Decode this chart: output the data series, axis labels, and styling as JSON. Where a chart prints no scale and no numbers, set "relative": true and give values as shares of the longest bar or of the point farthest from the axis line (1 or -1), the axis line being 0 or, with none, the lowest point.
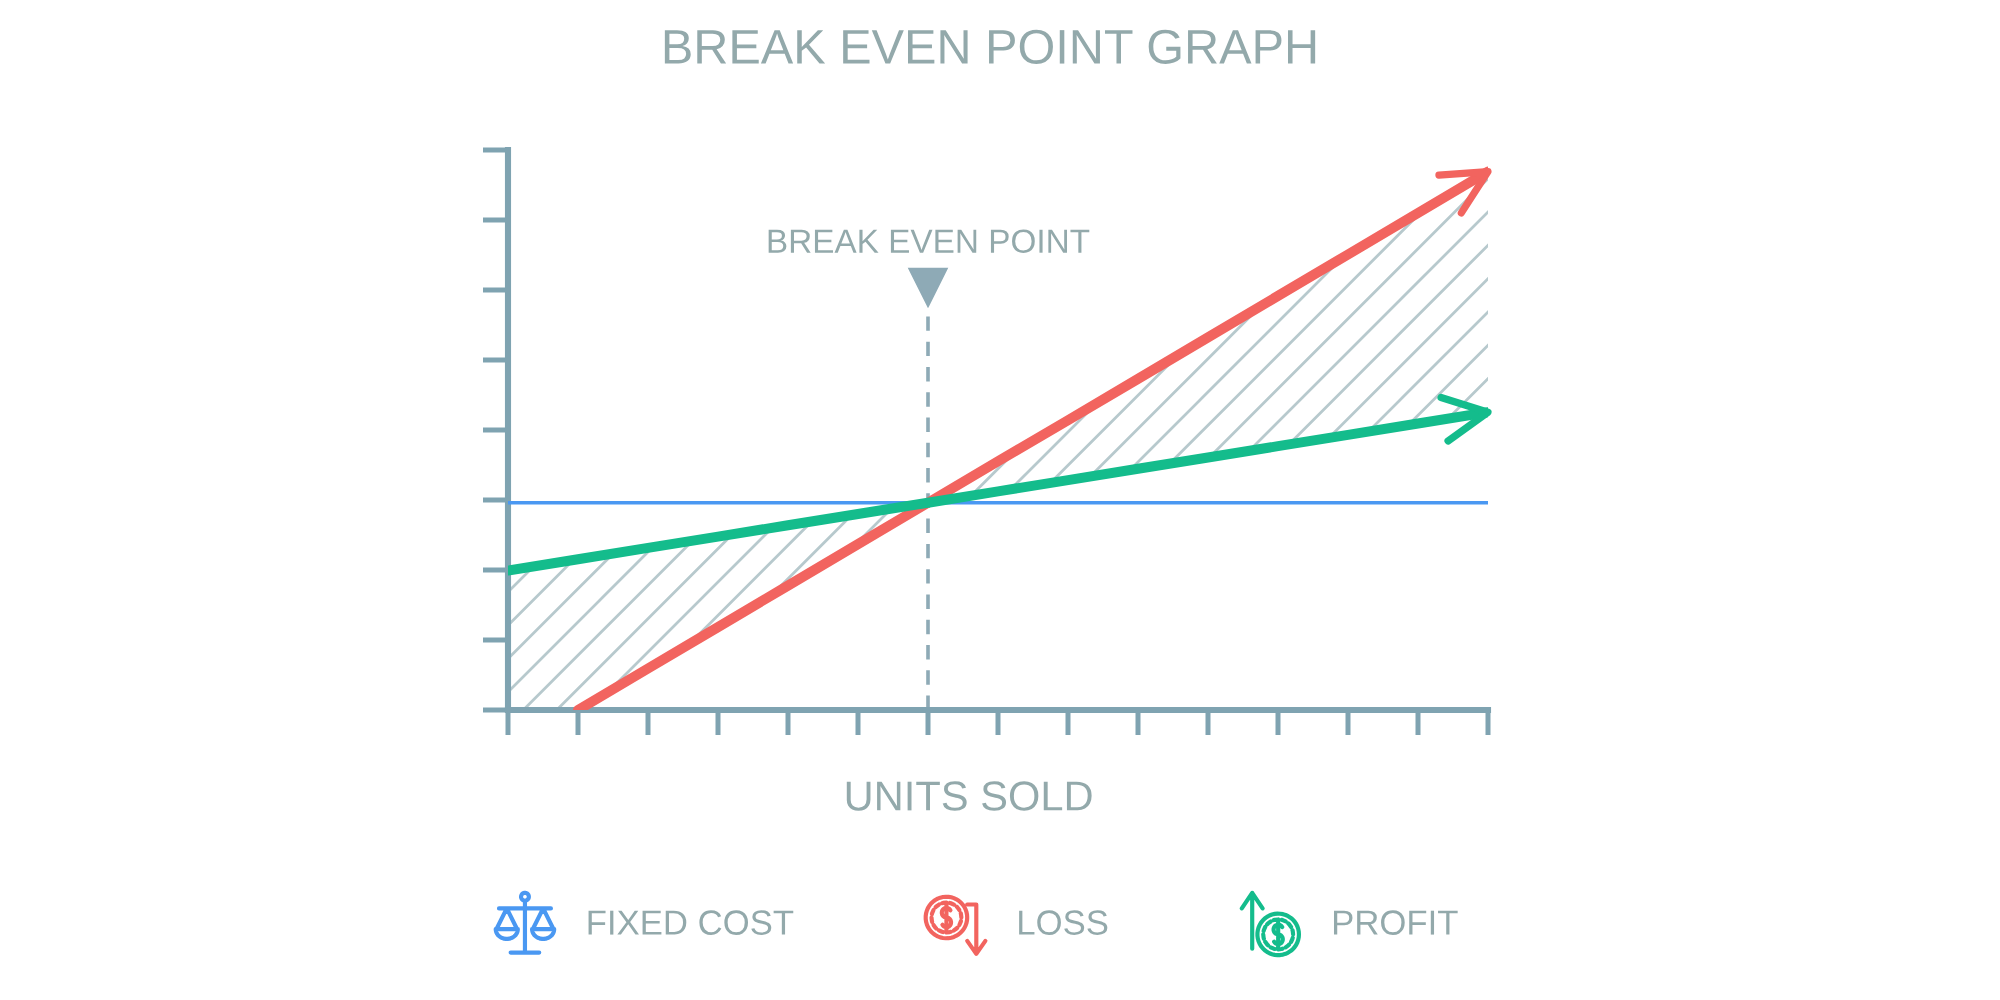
{
  "chart_data": {
    "type": "line",
    "title": "BREAK EVEN POINT GRAPH",
    "xlabel": "UNITS SOLD",
    "relative": true,
    "categories": [
      null,
      null,
      null,
      null,
      null,
      null,
      null,
      null,
      null,
      null,
      null,
      null,
      null,
      null,
      null
    ],
    "series": [
      {
        "name": "FIXED COST",
        "color": "#4a98f2",
        "values": [
          0.385,
          0.385,
          0.385,
          0.385,
          0.385,
          0.385,
          0.385,
          0.385,
          0.385,
          0.385,
          0.385,
          0.385,
          0.385,
          0.385,
          0.385
        ]
      },
      {
        "name": "LOSS",
        "color": "#f2645f",
        "values": [
          null,
          0,
          0.077,
          0.154,
          0.231,
          0.308,
          0.385,
          0.462,
          0.538,
          0.615,
          0.692,
          0.769,
          0.846,
          0.923,
          1
        ]
      },
      {
        "name": "PROFIT",
        "color": "#14bc8c",
        "values": [
          0.259,
          0.28,
          0.301,
          0.322,
          0.343,
          0.364,
          0.385,
          0.406,
          0.427,
          0.448,
          0.469,
          0.49,
          0.511,
          0.532,
          0.553
        ],
        "lower": [
          0,
          0,
          0.077,
          0.154,
          0.231,
          0.308,
          0.385,
          0.406,
          0.427,
          0.448,
          0.469,
          0.49,
          0.511,
          0.532,
          0.553
        ],
        "upper": [
          0.259,
          0.28,
          0.301,
          0.322,
          0.343,
          0.364,
          0.385,
          0.462,
          0.538,
          0.615,
          0.692,
          0.769,
          0.846,
          0.923,
          1
        ]
      }
    ],
    "annotations": [
      "BREAK EVEN POINT"
    ],
    "legend": "bottom"
  }
}
